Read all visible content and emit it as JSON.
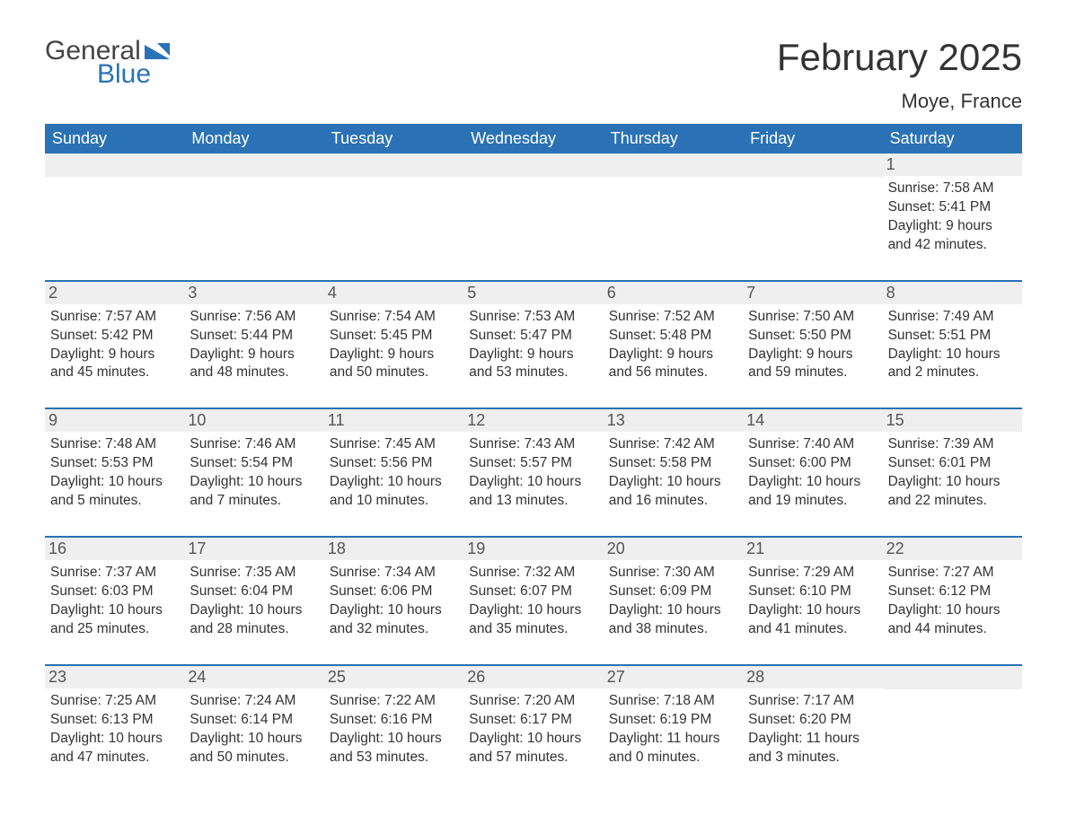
{
  "logo": {
    "word1": "General",
    "word2": "Blue",
    "icon_color": "#2a72b5"
  },
  "title": "February 2025",
  "location": "Moye, France",
  "styling": {
    "header_bg": "#2a72b5",
    "header_text": "#ffffff",
    "row_divider": "#2a72b5",
    "daynum_bg": "#efefef",
    "page_bg": "#ffffff",
    "body_text": "#333333",
    "title_fontsize": 42,
    "location_fontsize": 22,
    "weekday_fontsize": 18,
    "body_fontsize": 15.5,
    "columns": 7,
    "type": "calendar-table"
  },
  "weekdays": [
    "Sunday",
    "Monday",
    "Tuesday",
    "Wednesday",
    "Thursday",
    "Friday",
    "Saturday"
  ],
  "labels": {
    "sunrise": "Sunrise:",
    "sunset": "Sunset:",
    "daylight": "Daylight:"
  },
  "weeks": [
    [
      null,
      null,
      null,
      null,
      null,
      null,
      {
        "n": "1",
        "sunrise": "7:58 AM",
        "sunset": "5:41 PM",
        "daylight": "9 hours and 42 minutes."
      }
    ],
    [
      {
        "n": "2",
        "sunrise": "7:57 AM",
        "sunset": "5:42 PM",
        "daylight": "9 hours and 45 minutes."
      },
      {
        "n": "3",
        "sunrise": "7:56 AM",
        "sunset": "5:44 PM",
        "daylight": "9 hours and 48 minutes."
      },
      {
        "n": "4",
        "sunrise": "7:54 AM",
        "sunset": "5:45 PM",
        "daylight": "9 hours and 50 minutes."
      },
      {
        "n": "5",
        "sunrise": "7:53 AM",
        "sunset": "5:47 PM",
        "daylight": "9 hours and 53 minutes."
      },
      {
        "n": "6",
        "sunrise": "7:52 AM",
        "sunset": "5:48 PM",
        "daylight": "9 hours and 56 minutes."
      },
      {
        "n": "7",
        "sunrise": "7:50 AM",
        "sunset": "5:50 PM",
        "daylight": "9 hours and 59 minutes."
      },
      {
        "n": "8",
        "sunrise": "7:49 AM",
        "sunset": "5:51 PM",
        "daylight": "10 hours and 2 minutes."
      }
    ],
    [
      {
        "n": "9",
        "sunrise": "7:48 AM",
        "sunset": "5:53 PM",
        "daylight": "10 hours and 5 minutes."
      },
      {
        "n": "10",
        "sunrise": "7:46 AM",
        "sunset": "5:54 PM",
        "daylight": "10 hours and 7 minutes."
      },
      {
        "n": "11",
        "sunrise": "7:45 AM",
        "sunset": "5:56 PM",
        "daylight": "10 hours and 10 minutes."
      },
      {
        "n": "12",
        "sunrise": "7:43 AM",
        "sunset": "5:57 PM",
        "daylight": "10 hours and 13 minutes."
      },
      {
        "n": "13",
        "sunrise": "7:42 AM",
        "sunset": "5:58 PM",
        "daylight": "10 hours and 16 minutes."
      },
      {
        "n": "14",
        "sunrise": "7:40 AM",
        "sunset": "6:00 PM",
        "daylight": "10 hours and 19 minutes."
      },
      {
        "n": "15",
        "sunrise": "7:39 AM",
        "sunset": "6:01 PM",
        "daylight": "10 hours and 22 minutes."
      }
    ],
    [
      {
        "n": "16",
        "sunrise": "7:37 AM",
        "sunset": "6:03 PM",
        "daylight": "10 hours and 25 minutes."
      },
      {
        "n": "17",
        "sunrise": "7:35 AM",
        "sunset": "6:04 PM",
        "daylight": "10 hours and 28 minutes."
      },
      {
        "n": "18",
        "sunrise": "7:34 AM",
        "sunset": "6:06 PM",
        "daylight": "10 hours and 32 minutes."
      },
      {
        "n": "19",
        "sunrise": "7:32 AM",
        "sunset": "6:07 PM",
        "daylight": "10 hours and 35 minutes."
      },
      {
        "n": "20",
        "sunrise": "7:30 AM",
        "sunset": "6:09 PM",
        "daylight": "10 hours and 38 minutes."
      },
      {
        "n": "21",
        "sunrise": "7:29 AM",
        "sunset": "6:10 PM",
        "daylight": "10 hours and 41 minutes."
      },
      {
        "n": "22",
        "sunrise": "7:27 AM",
        "sunset": "6:12 PM",
        "daylight": "10 hours and 44 minutes."
      }
    ],
    [
      {
        "n": "23",
        "sunrise": "7:25 AM",
        "sunset": "6:13 PM",
        "daylight": "10 hours and 47 minutes."
      },
      {
        "n": "24",
        "sunrise": "7:24 AM",
        "sunset": "6:14 PM",
        "daylight": "10 hours and 50 minutes."
      },
      {
        "n": "25",
        "sunrise": "7:22 AM",
        "sunset": "6:16 PM",
        "daylight": "10 hours and 53 minutes."
      },
      {
        "n": "26",
        "sunrise": "7:20 AM",
        "sunset": "6:17 PM",
        "daylight": "10 hours and 57 minutes."
      },
      {
        "n": "27",
        "sunrise": "7:18 AM",
        "sunset": "6:19 PM",
        "daylight": "11 hours and 0 minutes."
      },
      {
        "n": "28",
        "sunrise": "7:17 AM",
        "sunset": "6:20 PM",
        "daylight": "11 hours and 3 minutes."
      },
      null
    ]
  ]
}
